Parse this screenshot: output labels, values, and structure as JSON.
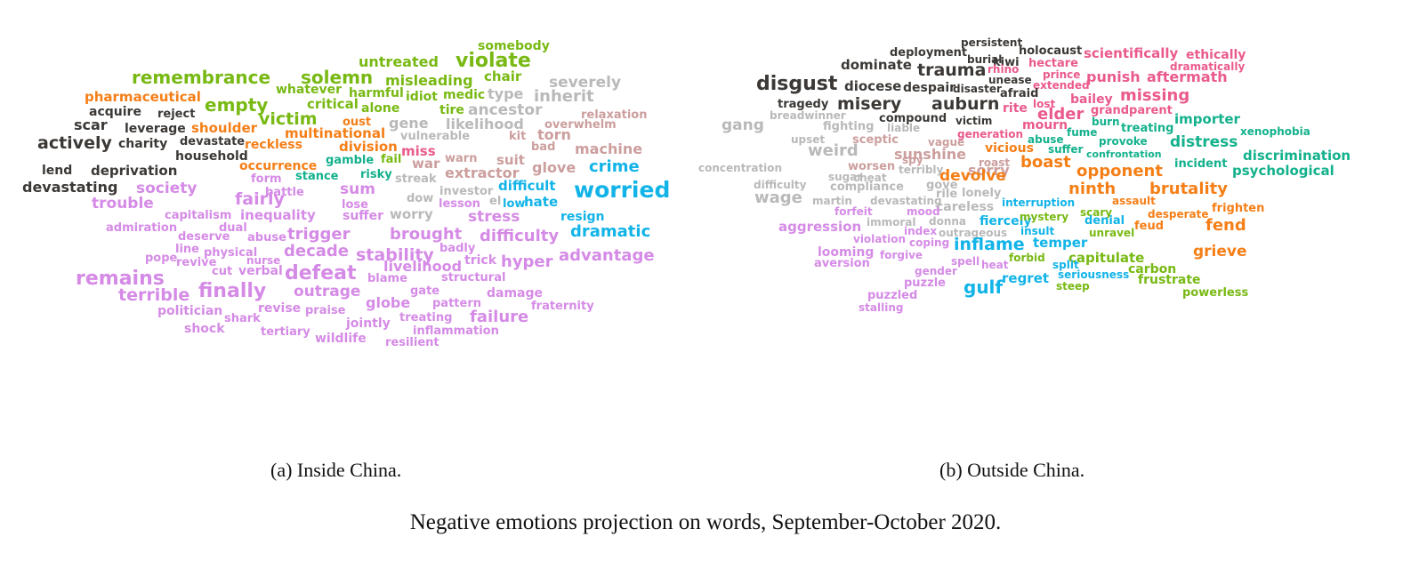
{
  "palette": {
    "dark": "#3b3835",
    "green": "#78b913",
    "orange": "#f57f17",
    "grey": "#b9b9b9",
    "rose": "#cc9e9e",
    "pink": "#ea5a8d",
    "cyan": "#12b4e8",
    "violet": "#d58be6",
    "teal": "#13b18c"
  },
  "left_cloud": [
    {
      "t": "somebody",
      "c": "green"
    },
    {
      "t": "violate",
      "c": "green"
    },
    {
      "t": "untreated",
      "c": "green"
    },
    {
      "t": "remembrance",
      "c": "green"
    },
    {
      "t": "solemn",
      "c": "green"
    },
    {
      "t": "misleading",
      "c": "green"
    },
    {
      "t": "chair",
      "c": "green"
    },
    {
      "t": "severely",
      "c": "grey"
    },
    {
      "t": "pharmaceutical",
      "c": "orange"
    },
    {
      "t": "whatever",
      "c": "green"
    },
    {
      "t": "harmful",
      "c": "green"
    },
    {
      "t": "idiot",
      "c": "green"
    },
    {
      "t": "medic",
      "c": "green"
    },
    {
      "t": "type",
      "c": "grey"
    },
    {
      "t": "inherit",
      "c": "grey"
    },
    {
      "t": "empty",
      "c": "green"
    },
    {
      "t": "critical",
      "c": "green"
    },
    {
      "t": "alone",
      "c": "green"
    },
    {
      "t": "tire",
      "c": "green"
    },
    {
      "t": "ancestor",
      "c": "grey"
    },
    {
      "t": "acquire",
      "c": "dark"
    },
    {
      "t": "reject",
      "c": "dark"
    },
    {
      "t": "victim",
      "c": "green"
    },
    {
      "t": "oust",
      "c": "orange"
    },
    {
      "t": "gene",
      "c": "grey"
    },
    {
      "t": "likelihood",
      "c": "grey"
    },
    {
      "t": "relaxation",
      "c": "rose"
    },
    {
      "t": "scar",
      "c": "dark"
    },
    {
      "t": "leverage",
      "c": "dark"
    },
    {
      "t": "shoulder",
      "c": "orange"
    },
    {
      "t": "multinational",
      "c": "orange"
    },
    {
      "t": "overwhelm",
      "c": "rose"
    },
    {
      "t": "kit",
      "c": "rose"
    },
    {
      "t": "torn",
      "c": "rose"
    },
    {
      "t": "vulnerable",
      "c": "grey"
    },
    {
      "t": "actively",
      "c": "dark"
    },
    {
      "t": "charity",
      "c": "dark"
    },
    {
      "t": "devastate",
      "c": "dark"
    },
    {
      "t": "reckless",
      "c": "orange"
    },
    {
      "t": "division",
      "c": "orange"
    },
    {
      "t": "miss",
      "c": "pink"
    },
    {
      "t": "bad",
      "c": "rose"
    },
    {
      "t": "machine",
      "c": "rose"
    },
    {
      "t": "household",
      "c": "dark"
    },
    {
      "t": "gamble",
      "c": "teal"
    },
    {
      "t": "fail",
      "c": "green"
    },
    {
      "t": "war",
      "c": "rose"
    },
    {
      "t": "warn",
      "c": "rose"
    },
    {
      "t": "suit",
      "c": "rose"
    },
    {
      "t": "glove",
      "c": "rose"
    },
    {
      "t": "crime",
      "c": "cyan"
    },
    {
      "t": "occurrence",
      "c": "orange"
    },
    {
      "t": "lend",
      "c": "dark"
    },
    {
      "t": "deprivation",
      "c": "dark"
    },
    {
      "t": "stance",
      "c": "teal"
    },
    {
      "t": "risky",
      "c": "teal"
    },
    {
      "t": "extractor",
      "c": "rose"
    },
    {
      "t": "streak",
      "c": "grey"
    },
    {
      "t": "form",
      "c": "violet"
    },
    {
      "t": "devastating",
      "c": "dark"
    },
    {
      "t": "society",
      "c": "violet"
    },
    {
      "t": "sum",
      "c": "violet"
    },
    {
      "t": "difficult",
      "c": "cyan"
    },
    {
      "t": "worried",
      "c": "cyan"
    },
    {
      "t": "battle",
      "c": "violet"
    },
    {
      "t": "investor",
      "c": "grey"
    },
    {
      "t": "fairly",
      "c": "violet"
    },
    {
      "t": "dow",
      "c": "grey"
    },
    {
      "t": "el",
      "c": "grey"
    },
    {
      "t": "low",
      "c": "cyan"
    },
    {
      "t": "hate",
      "c": "cyan"
    },
    {
      "t": "trouble",
      "c": "violet"
    },
    {
      "t": "lose",
      "c": "violet"
    },
    {
      "t": "lesson",
      "c": "violet"
    },
    {
      "t": "capitalism",
      "c": "violet"
    },
    {
      "t": "inequality",
      "c": "violet"
    },
    {
      "t": "suffer",
      "c": "violet"
    },
    {
      "t": "worry",
      "c": "grey"
    },
    {
      "t": "stress",
      "c": "violet"
    },
    {
      "t": "resign",
      "c": "cyan"
    },
    {
      "t": "admiration",
      "c": "violet"
    },
    {
      "t": "dual",
      "c": "violet"
    },
    {
      "t": "dramatic",
      "c": "cyan"
    },
    {
      "t": "brought",
      "c": "violet"
    },
    {
      "t": "difficulty",
      "c": "violet"
    },
    {
      "t": "deserve",
      "c": "violet"
    },
    {
      "t": "abuse",
      "c": "violet"
    },
    {
      "t": "trigger",
      "c": "violet"
    },
    {
      "t": "line",
      "c": "violet"
    },
    {
      "t": "physical",
      "c": "violet"
    },
    {
      "t": "decade",
      "c": "violet"
    },
    {
      "t": "stability",
      "c": "violet"
    },
    {
      "t": "badly",
      "c": "violet"
    },
    {
      "t": "pope",
      "c": "violet"
    },
    {
      "t": "revive",
      "c": "violet"
    },
    {
      "t": "nurse",
      "c": "violet"
    },
    {
      "t": "trick",
      "c": "violet"
    },
    {
      "t": "hyper",
      "c": "violet"
    },
    {
      "t": "advantage",
      "c": "violet"
    },
    {
      "t": "cut",
      "c": "violet"
    },
    {
      "t": "verbal",
      "c": "violet"
    },
    {
      "t": "defeat",
      "c": "violet"
    },
    {
      "t": "livelihood",
      "c": "violet"
    },
    {
      "t": "remains",
      "c": "violet"
    },
    {
      "t": "structural",
      "c": "violet"
    },
    {
      "t": "blame",
      "c": "violet"
    },
    {
      "t": "finally",
      "c": "violet"
    },
    {
      "t": "terrible",
      "c": "violet"
    },
    {
      "t": "outrage",
      "c": "violet"
    },
    {
      "t": "gate",
      "c": "violet"
    },
    {
      "t": "damage",
      "c": "violet"
    },
    {
      "t": "globe",
      "c": "violet"
    },
    {
      "t": "pattern",
      "c": "violet"
    },
    {
      "t": "fraternity",
      "c": "violet"
    },
    {
      "t": "politician",
      "c": "violet"
    },
    {
      "t": "revise",
      "c": "violet"
    },
    {
      "t": "praise",
      "c": "violet"
    },
    {
      "t": "failure",
      "c": "violet"
    },
    {
      "t": "shark",
      "c": "violet"
    },
    {
      "t": "treating",
      "c": "violet"
    },
    {
      "t": "jointly",
      "c": "violet"
    },
    {
      "t": "shock",
      "c": "violet"
    },
    {
      "t": "tertiary",
      "c": "violet"
    },
    {
      "t": "inflammation",
      "c": "violet"
    },
    {
      "t": "wildlife",
      "c": "violet"
    },
    {
      "t": "resilient",
      "c": "violet"
    }
  ],
  "right_cloud": [
    {
      "t": "persistent",
      "c": "dark"
    },
    {
      "t": "deployment",
      "c": "dark"
    },
    {
      "t": "holocaust",
      "c": "dark"
    },
    {
      "t": "burial",
      "c": "dark"
    },
    {
      "t": "scientifically",
      "c": "pink"
    },
    {
      "t": "ethically",
      "c": "pink"
    },
    {
      "t": "kiwi",
      "c": "dark"
    },
    {
      "t": "hectare",
      "c": "pink"
    },
    {
      "t": "dominate",
      "c": "dark"
    },
    {
      "t": "trauma",
      "c": "dark"
    },
    {
      "t": "rhino",
      "c": "pink"
    },
    {
      "t": "dramatically",
      "c": "pink"
    },
    {
      "t": "prince",
      "c": "pink"
    },
    {
      "t": "unease",
      "c": "dark"
    },
    {
      "t": "punish",
      "c": "pink"
    },
    {
      "t": "aftermath",
      "c": "pink"
    },
    {
      "t": "disgust",
      "c": "dark"
    },
    {
      "t": "extended",
      "c": "pink"
    },
    {
      "t": "diocese",
      "c": "dark"
    },
    {
      "t": "despair",
      "c": "dark"
    },
    {
      "t": "disaster",
      "c": "dark"
    },
    {
      "t": "afraid",
      "c": "dark"
    },
    {
      "t": "missing",
      "c": "pink"
    },
    {
      "t": "bailey",
      "c": "pink"
    },
    {
      "t": "tragedy",
      "c": "dark"
    },
    {
      "t": "misery",
      "c": "dark"
    },
    {
      "t": "auburn",
      "c": "dark"
    },
    {
      "t": "lost",
      "c": "pink"
    },
    {
      "t": "rite",
      "c": "pink"
    },
    {
      "t": "grandparent",
      "c": "pink"
    },
    {
      "t": "elder",
      "c": "pink"
    },
    {
      "t": "importer",
      "c": "teal"
    },
    {
      "t": "breadwinner",
      "c": "grey"
    },
    {
      "t": "compound",
      "c": "dark"
    },
    {
      "t": "victim",
      "c": "dark"
    },
    {
      "t": "burn",
      "c": "teal"
    },
    {
      "t": "gang",
      "c": "grey"
    },
    {
      "t": "fighting",
      "c": "grey"
    },
    {
      "t": "liable",
      "c": "grey"
    },
    {
      "t": "mourn",
      "c": "pink"
    },
    {
      "t": "treating",
      "c": "teal"
    },
    {
      "t": "xenophobia",
      "c": "teal"
    },
    {
      "t": "generation",
      "c": "pink"
    },
    {
      "t": "fume",
      "c": "teal"
    },
    {
      "t": "upset",
      "c": "grey"
    },
    {
      "t": "sceptic",
      "c": "rose"
    },
    {
      "t": "vague",
      "c": "rose"
    },
    {
      "t": "abuse",
      "c": "teal"
    },
    {
      "t": "provoke",
      "c": "teal"
    },
    {
      "t": "distress",
      "c": "teal"
    },
    {
      "t": "weird",
      "c": "grey"
    },
    {
      "t": "vicious",
      "c": "orange"
    },
    {
      "t": "suffer",
      "c": "teal"
    },
    {
      "t": "sunshine",
      "c": "rose"
    },
    {
      "t": "confrontation",
      "c": "teal"
    },
    {
      "t": "discrimination",
      "c": "teal"
    },
    {
      "t": "spy",
      "c": "rose"
    },
    {
      "t": "roast",
      "c": "rose"
    },
    {
      "t": "boast",
      "c": "orange"
    },
    {
      "t": "incident",
      "c": "teal"
    },
    {
      "t": "concentration",
      "c": "grey"
    },
    {
      "t": "worsen",
      "c": "rose"
    },
    {
      "t": "terribly",
      "c": "grey"
    },
    {
      "t": "sorry",
      "c": "rose"
    },
    {
      "t": "opponent",
      "c": "orange"
    },
    {
      "t": "psychological",
      "c": "teal"
    },
    {
      "t": "sugar",
      "c": "grey"
    },
    {
      "t": "cheat",
      "c": "grey"
    },
    {
      "t": "devolve",
      "c": "orange"
    },
    {
      "t": "difficulty",
      "c": "grey"
    },
    {
      "t": "compliance",
      "c": "grey"
    },
    {
      "t": "gove",
      "c": "grey"
    },
    {
      "t": "ninth",
      "c": "orange"
    },
    {
      "t": "brutality",
      "c": "orange"
    },
    {
      "t": "rile",
      "c": "grey"
    },
    {
      "t": "lonely",
      "c": "grey"
    },
    {
      "t": "wage",
      "c": "grey"
    },
    {
      "t": "martin",
      "c": "grey"
    },
    {
      "t": "devastating",
      "c": "grey"
    },
    {
      "t": "careless",
      "c": "grey"
    },
    {
      "t": "interruption",
      "c": "cyan"
    },
    {
      "t": "assault",
      "c": "orange"
    },
    {
      "t": "forfeit",
      "c": "violet"
    },
    {
      "t": "mood",
      "c": "violet"
    },
    {
      "t": "scary",
      "c": "green"
    },
    {
      "t": "frighten",
      "c": "orange"
    },
    {
      "t": "immoral",
      "c": "grey"
    },
    {
      "t": "donna",
      "c": "grey"
    },
    {
      "t": "fiercely",
      "c": "cyan"
    },
    {
      "t": "mystery",
      "c": "green"
    },
    {
      "t": "desperate",
      "c": "orange"
    },
    {
      "t": "aggression",
      "c": "violet"
    },
    {
      "t": "index",
      "c": "violet"
    },
    {
      "t": "outrageous",
      "c": "grey"
    },
    {
      "t": "insult",
      "c": "cyan"
    },
    {
      "t": "denial",
      "c": "cyan"
    },
    {
      "t": "feud",
      "c": "orange"
    },
    {
      "t": "fend",
      "c": "orange"
    },
    {
      "t": "unravel",
      "c": "green"
    },
    {
      "t": "violation",
      "c": "violet"
    },
    {
      "t": "coping",
      "c": "violet"
    },
    {
      "t": "inflame",
      "c": "cyan"
    },
    {
      "t": "temper",
      "c": "cyan"
    },
    {
      "t": "looming",
      "c": "violet"
    },
    {
      "t": "forgive",
      "c": "violet"
    },
    {
      "t": "forbid",
      "c": "green"
    },
    {
      "t": "capitulate",
      "c": "green"
    },
    {
      "t": "grieve",
      "c": "orange"
    },
    {
      "t": "aversion",
      "c": "violet"
    },
    {
      "t": "spell",
      "c": "violet"
    },
    {
      "t": "heat",
      "c": "violet"
    },
    {
      "t": "split",
      "c": "cyan"
    },
    {
      "t": "carbon",
      "c": "green"
    },
    {
      "t": "gender",
      "c": "violet"
    },
    {
      "t": "seriousness",
      "c": "cyan"
    },
    {
      "t": "puzzle",
      "c": "violet"
    },
    {
      "t": "regret",
      "c": "cyan"
    },
    {
      "t": "frustrate",
      "c": "green"
    },
    {
      "t": "gulf",
      "c": "cyan"
    },
    {
      "t": "steep",
      "c": "green"
    },
    {
      "t": "powerless",
      "c": "green"
    },
    {
      "t": "puzzled",
      "c": "violet"
    },
    {
      "t": "stalling",
      "c": "violet"
    }
  ],
  "captions": {
    "left": "(a) Inside China.",
    "right": "(b) Outside China.",
    "figure": "Negative emotions projection on words, September-October 2020."
  }
}
